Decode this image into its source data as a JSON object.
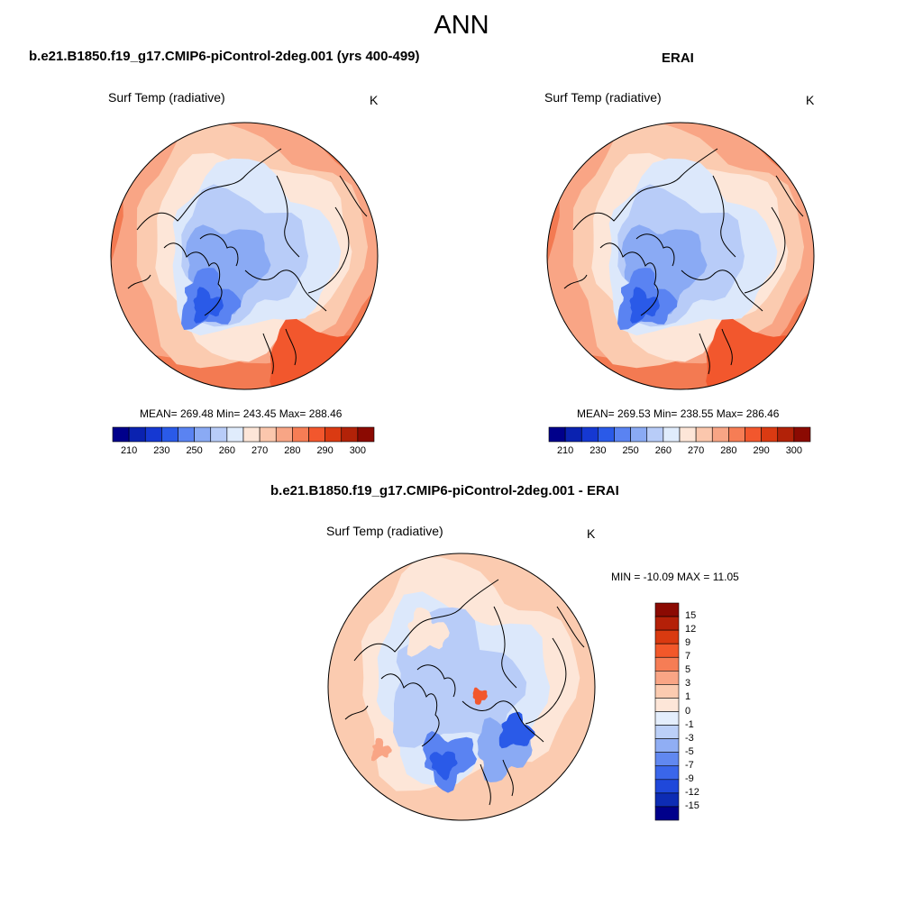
{
  "page": {
    "title": "ANN"
  },
  "panels": {
    "left": {
      "title": "b.e21.B1850.f19_g17.CMIP6-piControl-2deg.001 (yrs 400-499)",
      "variable": "Surf Temp (radiative)",
      "units": "K",
      "stats": "MEAN= 269.48  Min= 243.45  Max= 288.46"
    },
    "right": {
      "title": "ERAI",
      "variable": "Surf Temp (radiative)",
      "units": "K",
      "stats": "MEAN= 269.53  Min= 238.55  Max= 286.46"
    },
    "diff": {
      "title": "b.e21.B1850.f19_g17.CMIP6-piControl-2deg.001 - ERAI",
      "variable": "Surf Temp (radiative)",
      "units": "K",
      "stats": "MIN = -10.09 MAX =  11.05"
    }
  },
  "colorbars": {
    "absolute": {
      "tick_labels": [
        "210",
        "230",
        "250",
        "260",
        "270",
        "280",
        "290",
        "300"
      ],
      "colors": [
        "#00008b",
        "#0a22b0",
        "#1538d2",
        "#2a5ae8",
        "#5a83f2",
        "#8aaaf4",
        "#b8ccf8",
        "#e0ecfc",
        "#fde6d8",
        "#fbc7ad",
        "#f8a585",
        "#f67d55",
        "#f2572d",
        "#da3a12",
        "#b22208",
        "#8b0a02"
      ]
    },
    "difference": {
      "tick_labels": [
        "15",
        "12",
        "9",
        "7",
        "5",
        "3",
        "1",
        "0",
        "-1",
        "-3",
        "-5",
        "-7",
        "-9",
        "-12",
        "-15"
      ],
      "colors": [
        "#8b0a02",
        "#b42008",
        "#d93a10",
        "#f2582a",
        "#f67d55",
        "#f9a585",
        "#fbcbb0",
        "#fde6d8",
        "#e4eefc",
        "#bcd0f8",
        "#90aef4",
        "#6188f0",
        "#3a66ea",
        "#1f48da",
        "#0d2cb4",
        "#00008b"
      ]
    }
  },
  "map_palette": {
    "warm_outer": "#f37a52",
    "warm_mid": "#f9a585",
    "warm_light": "#fbcbb0",
    "neutral": "#fde6d8",
    "cool_light": "#dce8fb",
    "cool_mid": "#b8ccf8",
    "cool": "#8aaaf4",
    "cold": "#5a83f2",
    "coldest": "#2a5ae8",
    "hot_spot": "#f2572d",
    "coast": "#000000"
  }
}
